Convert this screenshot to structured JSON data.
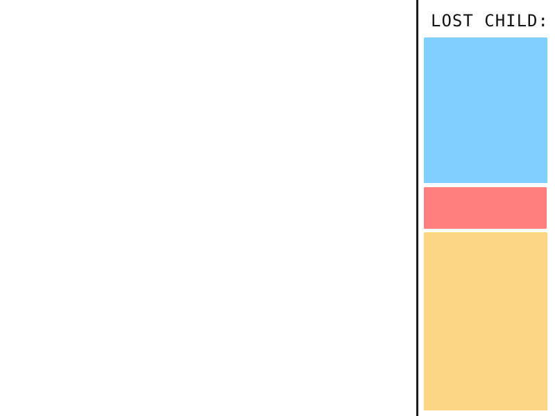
{
  "panel": {
    "title": "LOST CHILD:",
    "description_colors": {
      "head": "#7FCFFF",
      "torso": "#FF7F7F",
      "legs": "#FBD584"
    }
  }
}
